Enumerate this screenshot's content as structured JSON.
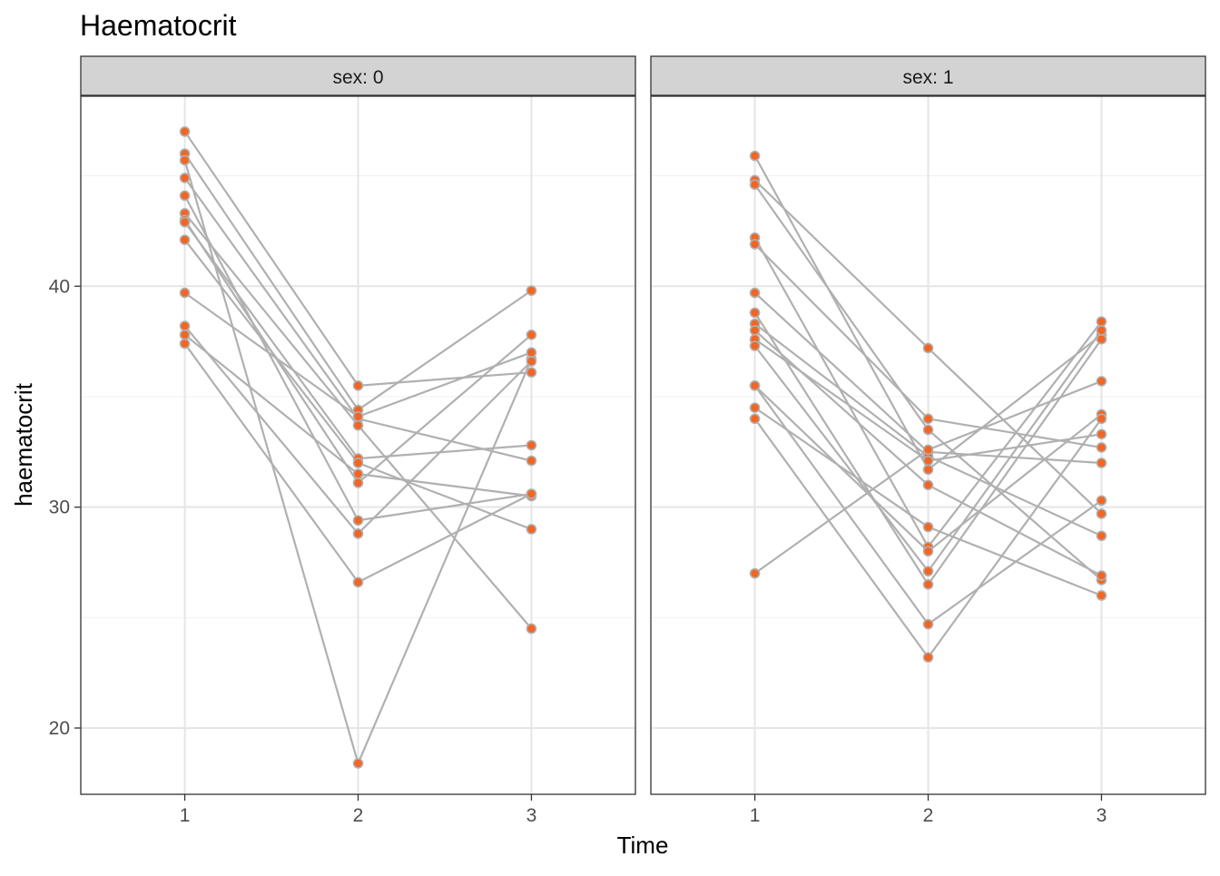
{
  "chart_data": {
    "type": "line",
    "title": "Haematocrit",
    "xlabel": "Time",
    "ylabel": "haematocrit",
    "x_ticks": [
      1,
      2,
      3
    ],
    "y_ticks": [
      20,
      30,
      40
    ],
    "ylim": [
      17,
      48.6
    ],
    "xlim": [
      0.4,
      3.6
    ],
    "grid": true,
    "colors": {
      "point_fill": "#F26522",
      "point_stroke": "#B0B0B0",
      "line": "#B0B0B0",
      "strip_fill": "#D3D3D3",
      "grid_major": "#E5E5E5",
      "grid_minor": "#F2F2F2"
    },
    "facets": [
      {
        "strip_label": "sex: 0",
        "series": [
          {
            "values": [
              47.0,
              35.5,
              36.1
            ]
          },
          {
            "values": [
              46.0,
              34.4,
              39.8
            ]
          },
          {
            "values": [
              45.7,
              18.4,
              36.7
            ]
          },
          {
            "values": [
              44.9,
              34.0,
              32.1
            ]
          },
          {
            "values": [
              44.1,
              29.4,
              30.6
            ]
          },
          {
            "values": [
              43.3,
              33.7,
              24.5
            ]
          },
          {
            "values": [
              43.0,
              31.1,
              37.8
            ]
          },
          {
            "values": [
              42.9,
              32.2,
              32.8
            ]
          },
          {
            "values": [
              42.1,
              32.0,
              29.0
            ]
          },
          {
            "values": [
              39.7,
              34.1,
              37.0
            ]
          },
          {
            "values": [
              38.2,
              28.8,
              36.6
            ]
          },
          {
            "values": [
              37.8,
              31.5,
              30.5
            ]
          },
          {
            "values": [
              37.4,
              26.6,
              30.6
            ]
          }
        ]
      },
      {
        "strip_label": "sex: 1",
        "series": [
          {
            "values": [
              45.9,
              31.7,
              37.8
            ]
          },
          {
            "values": [
              44.8,
              37.2,
              29.7
            ]
          },
          {
            "values": [
              44.6,
              33.5,
              26.7
            ]
          },
          {
            "values": [
              42.2,
              28.2,
              38.4
            ]
          },
          {
            "values": [
              41.9,
              34.0,
              32.7
            ]
          },
          {
            "values": [
              39.7,
              32.5,
              32.0
            ]
          },
          {
            "values": [
              38.8,
              26.5,
              37.6
            ]
          },
          {
            "values": [
              38.3,
              32.3,
              28.7
            ]
          },
          {
            "values": [
              38.0,
              31.0,
              26.9
            ]
          },
          {
            "values": [
              37.6,
              32.1,
              33.3
            ]
          },
          {
            "values": [
              37.3,
              27.1,
              38.0
            ]
          },
          {
            "values": [
              35.5,
              28.0,
              34.2
            ]
          },
          {
            "values": [
              35.5,
              24.7,
              30.3
            ]
          },
          {
            "values": [
              34.5,
              29.1,
              26.0
            ]
          },
          {
            "values": [
              34.0,
              23.2,
              34.0
            ]
          },
          {
            "values": [
              27.0,
              32.6,
              35.7
            ]
          }
        ]
      }
    ]
  }
}
